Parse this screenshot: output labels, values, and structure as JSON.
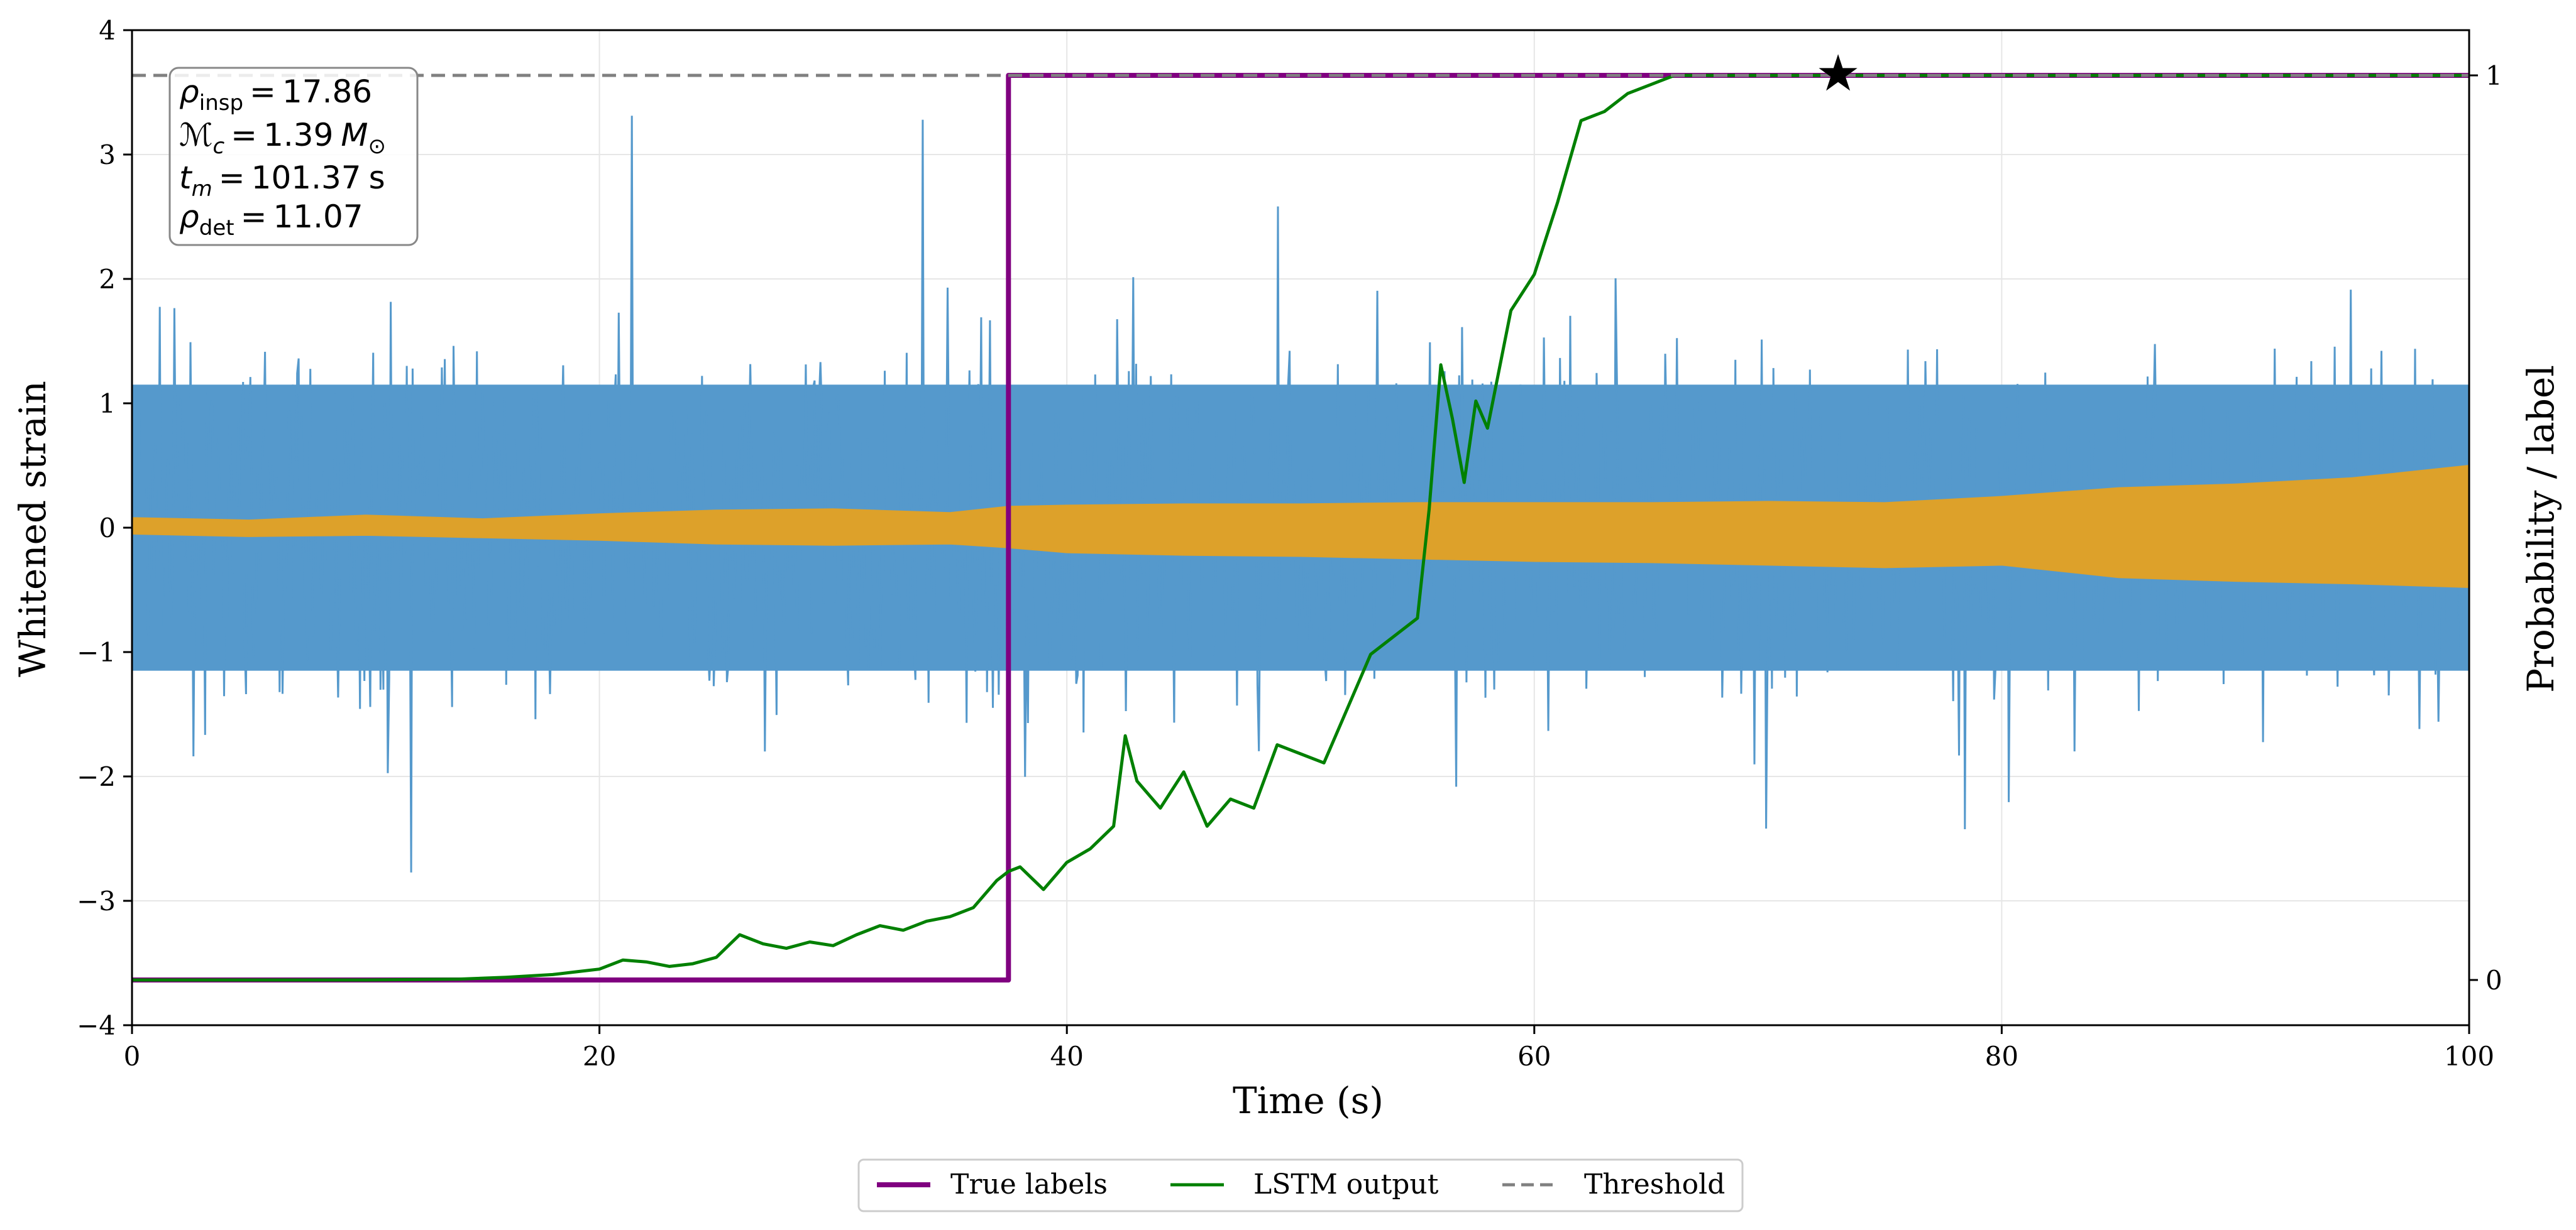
{
  "chart_data": {
    "type": "line",
    "xlabel": "Time (s)",
    "ylabel": "Whitened strain",
    "ylabel_right": "Probability / label",
    "xlim": [
      0,
      100
    ],
    "ylim": [
      -4,
      4
    ],
    "ylim_right": [
      -0.05,
      1.05
    ],
    "xticks": [
      0,
      20,
      40,
      60,
      80,
      100
    ],
    "yticks": [
      -4,
      -3,
      -2,
      -1,
      0,
      1,
      2,
      3,
      4
    ],
    "yticks_right": [
      0,
      1
    ],
    "grid": true,
    "legend_position": "bottom-center",
    "legend": [
      {
        "label": "True labels",
        "color": "#800080",
        "style": "solid"
      },
      {
        "label": "LSTM output",
        "color": "#008000",
        "style": "solid"
      },
      {
        "label": "Threshold",
        "color": "#808080",
        "style": "dashed"
      }
    ],
    "info_box": {
      "rho_insp": {
        "symbol": "ρ",
        "sub": "insp",
        "value": "17.86",
        "unit": ""
      },
      "chirp_mass": {
        "symbol": "ℳ",
        "sub": "c",
        "value": "1.39",
        "unit": "M",
        "unit_sub": "⊙"
      },
      "t_merger": {
        "symbol": "t",
        "sub": "m",
        "value": "101.37",
        "unit": "s"
      },
      "rho_det": {
        "symbol": "ρ",
        "sub": "det",
        "value": "11.07",
        "unit": ""
      }
    },
    "strain_noise": {
      "color": "#5599cc",
      "duration_s": 100,
      "samples": 1600,
      "core_amplitude": 1.2,
      "spike_max": 4.0,
      "seed": 7
    },
    "signal_envelope": {
      "color": "#DDA12A",
      "x": [
        0,
        5,
        10,
        15,
        20,
        25,
        30,
        35,
        37.5,
        40,
        45,
        50,
        55,
        60,
        65,
        70,
        75,
        80,
        85,
        90,
        95,
        100
      ],
      "upper": [
        0.08,
        0.06,
        0.1,
        0.07,
        0.11,
        0.14,
        0.15,
        0.12,
        0.17,
        0.18,
        0.19,
        0.19,
        0.2,
        0.2,
        0.2,
        0.21,
        0.2,
        0.25,
        0.32,
        0.35,
        0.4,
        0.5
      ],
      "lower": [
        -0.05,
        -0.07,
        -0.06,
        -0.08,
        -0.1,
        -0.13,
        -0.14,
        -0.13,
        -0.16,
        -0.2,
        -0.22,
        -0.23,
        -0.25,
        -0.27,
        -0.28,
        -0.3,
        -0.32,
        -0.3,
        -0.4,
        -0.43,
        -0.45,
        -0.48
      ]
    },
    "series": [
      {
        "name": "True labels",
        "axis": "right",
        "color": "#800080",
        "x": [
          0,
          37.5,
          37.5,
          100
        ],
        "y": [
          0,
          0,
          1,
          1
        ]
      },
      {
        "name": "LSTM output",
        "axis": "right",
        "color": "#008000",
        "x": [
          0,
          10,
          14,
          16,
          18,
          19,
          20,
          21,
          22,
          23,
          24,
          25,
          26,
          27,
          28,
          29,
          30,
          31,
          32,
          33,
          34,
          35,
          36,
          37,
          37.5,
          38,
          39,
          40,
          41,
          42,
          42.5,
          43,
          44,
          45,
          46,
          47,
          48,
          49,
          50,
          51,
          52,
          53,
          54,
          55,
          55.5,
          56,
          56.5,
          57,
          57.5,
          58,
          59,
          60,
          61,
          62,
          63,
          64,
          65,
          66,
          68,
          70,
          73,
          75,
          80,
          100
        ],
        "y": [
          0,
          0,
          0.001,
          0.003,
          0.006,
          0.009,
          0.012,
          0.022,
          0.02,
          0.015,
          0.018,
          0.025,
          0.05,
          0.04,
          0.035,
          0.042,
          0.038,
          0.05,
          0.06,
          0.055,
          0.065,
          0.07,
          0.08,
          0.11,
          0.12,
          0.125,
          0.1,
          0.13,
          0.145,
          0.17,
          0.27,
          0.22,
          0.19,
          0.23,
          0.17,
          0.2,
          0.19,
          0.26,
          0.25,
          0.24,
          0.3,
          0.36,
          0.38,
          0.4,
          0.52,
          0.68,
          0.62,
          0.55,
          0.64,
          0.61,
          0.74,
          0.78,
          0.86,
          0.95,
          0.96,
          0.98,
          0.99,
          1.0,
          1.0,
          1.0,
          1.0,
          1.0,
          1.0,
          1.0
        ]
      },
      {
        "name": "Threshold",
        "axis": "right",
        "color": "#808080",
        "x": [
          0,
          100
        ],
        "y": [
          1,
          1
        ]
      }
    ],
    "detection_marker": {
      "x": 73,
      "y": 1,
      "symbol": "★"
    }
  }
}
